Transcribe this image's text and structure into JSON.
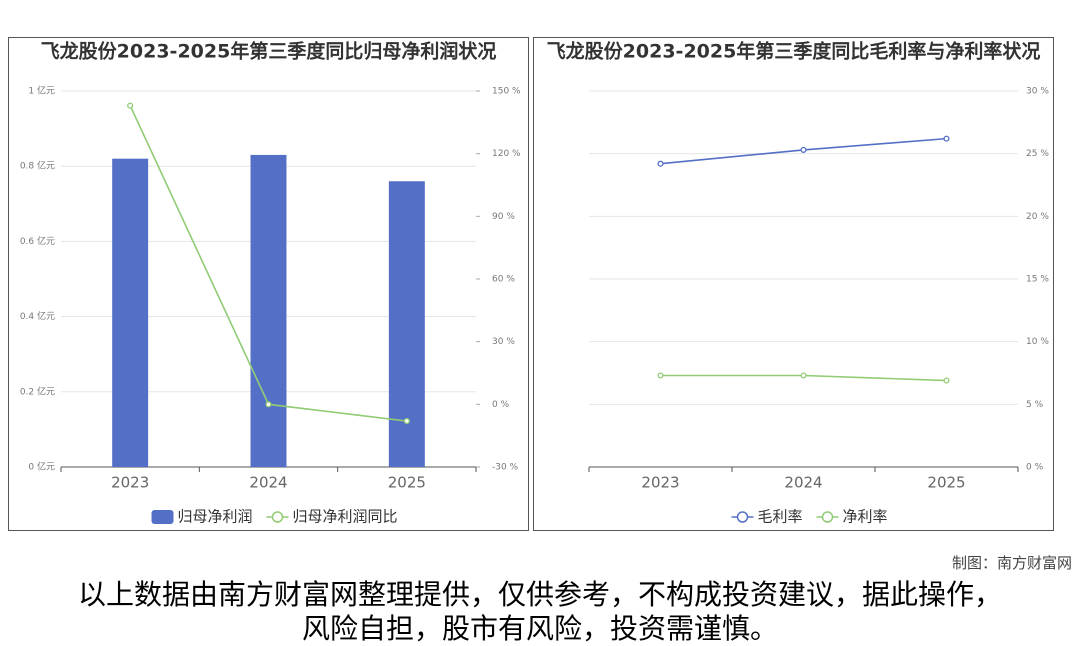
{
  "chart_data": [
    {
      "type": "bar",
      "title": "飞龙股份2023-2025年第三季度同比归母净利润状况",
      "categories": [
        "2023",
        "2024",
        "2025"
      ],
      "series": [
        {
          "name": "归母净利润",
          "type": "bar",
          "color": "#5470c6",
          "values": [
            0.82,
            0.83,
            0.76
          ]
        },
        {
          "name": "归母净利润同比",
          "type": "line",
          "axis": "y2",
          "color": "#91cc75",
          "values": [
            143,
            0,
            -8
          ]
        }
      ],
      "ylim": [
        0,
        1
      ],
      "yticks": [
        {
          "value": 0,
          "label": "0 亿元"
        },
        {
          "value": 0.2,
          "label": "0.2 亿元"
        },
        {
          "value": 0.4,
          "label": "0.4 亿元"
        },
        {
          "value": 0.6,
          "label": "0.6 亿元"
        },
        {
          "value": 0.8,
          "label": "0.8 亿元"
        },
        {
          "value": 1,
          "label": "1 亿元"
        }
      ],
      "y2lim": [
        -30,
        150
      ],
      "y2ticks": [
        {
          "value": -30,
          "label": "-30 %"
        },
        {
          "value": 0,
          "label": "0 %"
        },
        {
          "value": 30,
          "label": "30 %"
        },
        {
          "value": 60,
          "label": "60 %"
        },
        {
          "value": 90,
          "label": "90 %"
        },
        {
          "value": 120,
          "label": "120 %"
        },
        {
          "value": 150,
          "label": "150 %"
        }
      ],
      "grid": true
    },
    {
      "type": "line",
      "title": "飞龙股份2023-2025年第三季度同比毛利率与净利率状况",
      "categories": [
        "2023",
        "2024",
        "2025"
      ],
      "series": [
        {
          "name": "毛利率",
          "type": "line",
          "color": "#5470c6",
          "values": [
            24.2,
            25.3,
            26.2
          ]
        },
        {
          "name": "净利率",
          "type": "line",
          "color": "#91cc75",
          "values": [
            7.3,
            7.3,
            6.9
          ]
        }
      ],
      "y_axis_side": "right",
      "ylim": [
        0,
        30
      ],
      "yticks": [
        {
          "value": 0,
          "label": "0 %"
        },
        {
          "value": 5,
          "label": "5 %"
        },
        {
          "value": 10,
          "label": "10 %"
        },
        {
          "value": 15,
          "label": "15 %"
        },
        {
          "value": 20,
          "label": "20 %"
        },
        {
          "value": 25,
          "label": "25 %"
        },
        {
          "value": 30,
          "label": "30 %"
        }
      ],
      "grid": true
    }
  ],
  "credit": "制图：南方财富网",
  "disclaimer": "以上数据由南方财富网整理提供，仅供参考，不构成投资建议，据此操作，风险自担，股市有风险，投资需谨慎。"
}
